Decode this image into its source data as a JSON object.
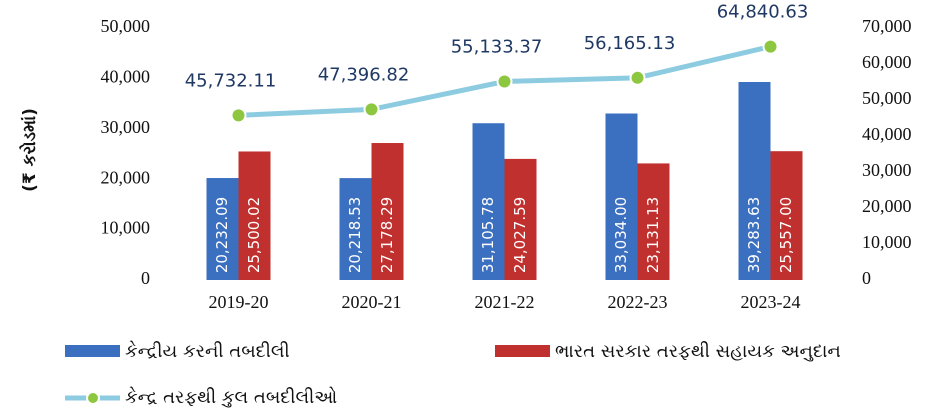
{
  "chart_data": {
    "type": "bar",
    "y_label": "(₹ કરોડમાં)",
    "categories": [
      "2019-20",
      "2020-21",
      "2021-22",
      "2022-23",
      "2023-24"
    ],
    "series": [
      {
        "name": "કેન્દ્રીય કરની તબદીલી",
        "color": "#3b6fbf",
        "values": [
          20232.09,
          20218.53,
          31105.78,
          33034.0,
          39283.63
        ],
        "value_labels": [
          "20,232.09",
          "20,218.53",
          "31,105.78",
          "33,034.00",
          "39,283.63"
        ]
      },
      {
        "name": "ભારત સરકાર તરફથી સહાયક અનુદાન",
        "color": "#c0302e",
        "values": [
          25500.02,
          27178.29,
          24027.59,
          23131.13,
          25557.0
        ],
        "value_labels": [
          "25,500.02",
          "27,178.29",
          "24,027.59",
          "23,131.13",
          "25,557.00"
        ]
      },
      {
        "name": "કેન્દ્ર તરફથી કુલ તબદીલીઓ",
        "type": "line",
        "axis": "y2",
        "color": "#8ccbe0",
        "marker_color": "#8dc63f",
        "values": [
          45732.11,
          47396.82,
          55133.37,
          56165.13,
          64840.63
        ],
        "value_labels": [
          "45,732.11",
          "47,396.82",
          "55,133.37",
          "56,165.13",
          "64,840.63"
        ]
      }
    ],
    "ylim": [
      0,
      50000
    ],
    "yticks": [
      0,
      {
        "value": 10000,
        "label": "10,000"
      },
      {
        "value": 20000,
        "label": "20,000"
      },
      {
        "value": 30000,
        "label": "30,000"
      },
      {
        "value": 40000,
        "label": "40,000"
      },
      {
        "value": 50000,
        "label": "50,000"
      }
    ],
    "y2lim": [
      0,
      70000
    ],
    "y2ticks": [
      0,
      {
        "value": 10000,
        "label": "10,000"
      },
      {
        "value": 20000,
        "label": "20,000"
      },
      {
        "value": 30000,
        "label": "30,000"
      },
      {
        "value": 40000,
        "label": "40,000"
      },
      {
        "value": 50000,
        "label": "50,000"
      },
      {
        "value": 60000,
        "label": "60,000"
      },
      {
        "value": 70000,
        "label": "70,000"
      }
    ]
  }
}
